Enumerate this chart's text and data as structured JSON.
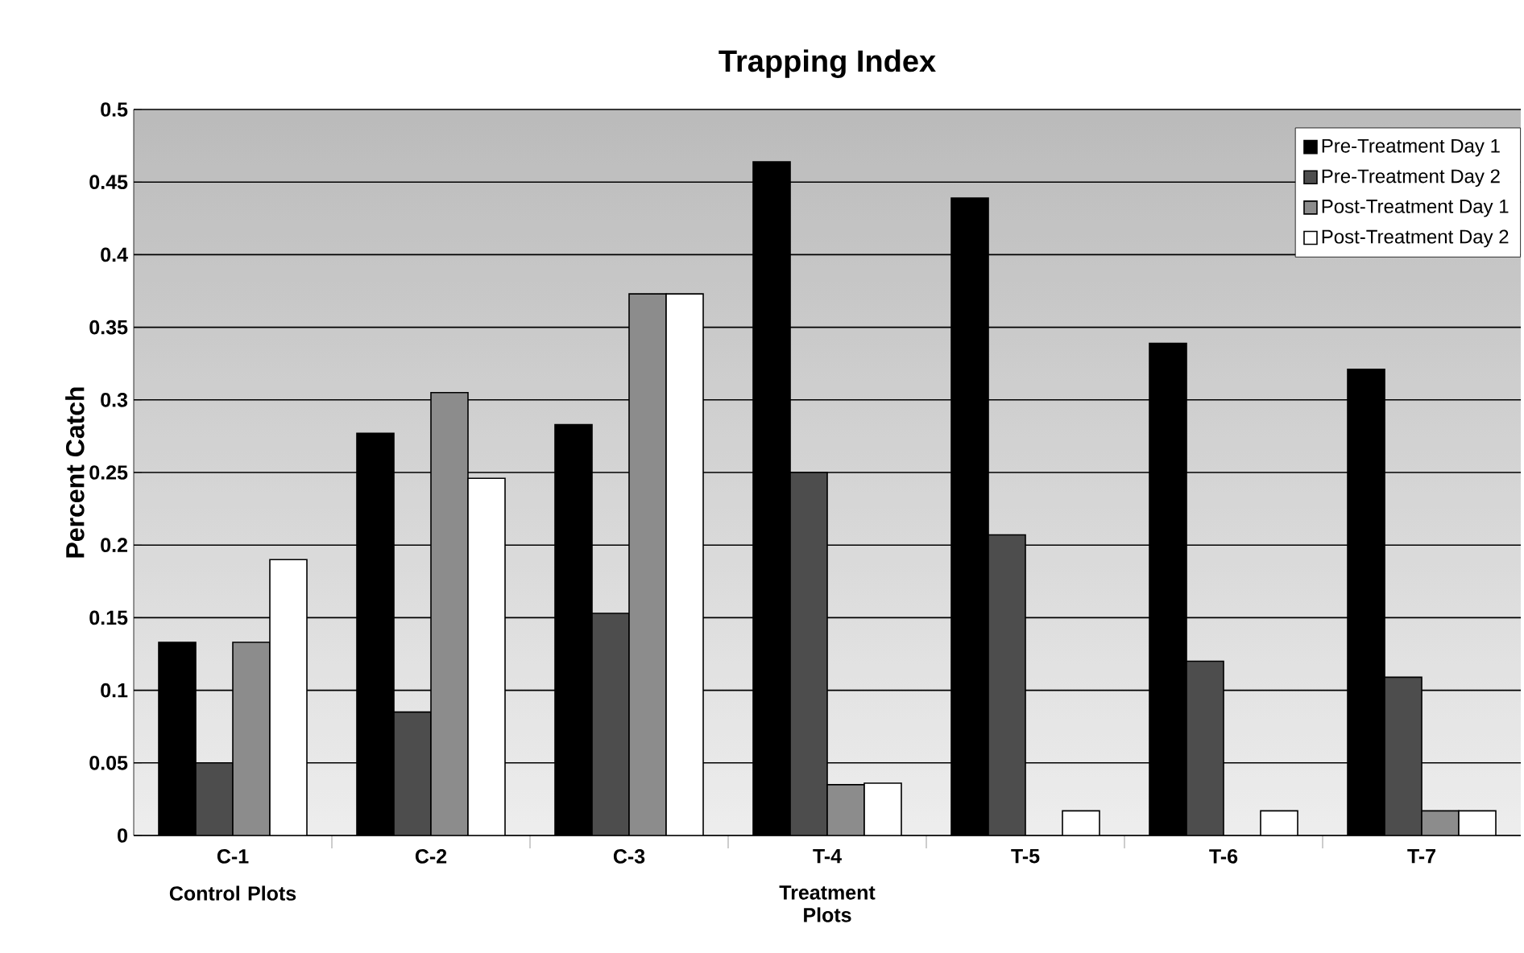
{
  "chart_data": {
    "type": "bar",
    "title": "Trapping Index",
    "ylabel": "Percent Catch",
    "categories": [
      "C-1",
      "C-2",
      "C-3",
      "T-4",
      "T-5",
      "T-6",
      "T-7"
    ],
    "annotations": [
      "Control Plots",
      "Treatment Plots"
    ],
    "series": [
      {
        "name": "Pre-Treatment Day 1",
        "color": "#000000",
        "values": [
          0.133,
          0.277,
          0.283,
          0.464,
          0.439,
          0.339,
          0.321
        ]
      },
      {
        "name": "Pre-Treatment Day 2",
        "color": "#4d4d4d",
        "values": [
          0.05,
          0.085,
          0.153,
          0.25,
          0.207,
          0.12,
          0.109
        ]
      },
      {
        "name": "Post-Treatment Day 1",
        "color": "#8c8c8c",
        "values": [
          0.133,
          0.305,
          0.373,
          0.035,
          null,
          null,
          0.017
        ]
      },
      {
        "name": "Post-Treatment Day 2",
        "color": "#ffffff",
        "values": [
          0.19,
          0.246,
          0.373,
          0.036,
          0.017,
          0.017,
          0.017
        ]
      }
    ],
    "ylim": [
      0,
      0.5
    ],
    "yticks": [
      0,
      0.05,
      0.1,
      0.15,
      0.2,
      0.25,
      0.3,
      0.35,
      0.4,
      0.45,
      0.5
    ],
    "grid": "y",
    "legend": "top right"
  }
}
